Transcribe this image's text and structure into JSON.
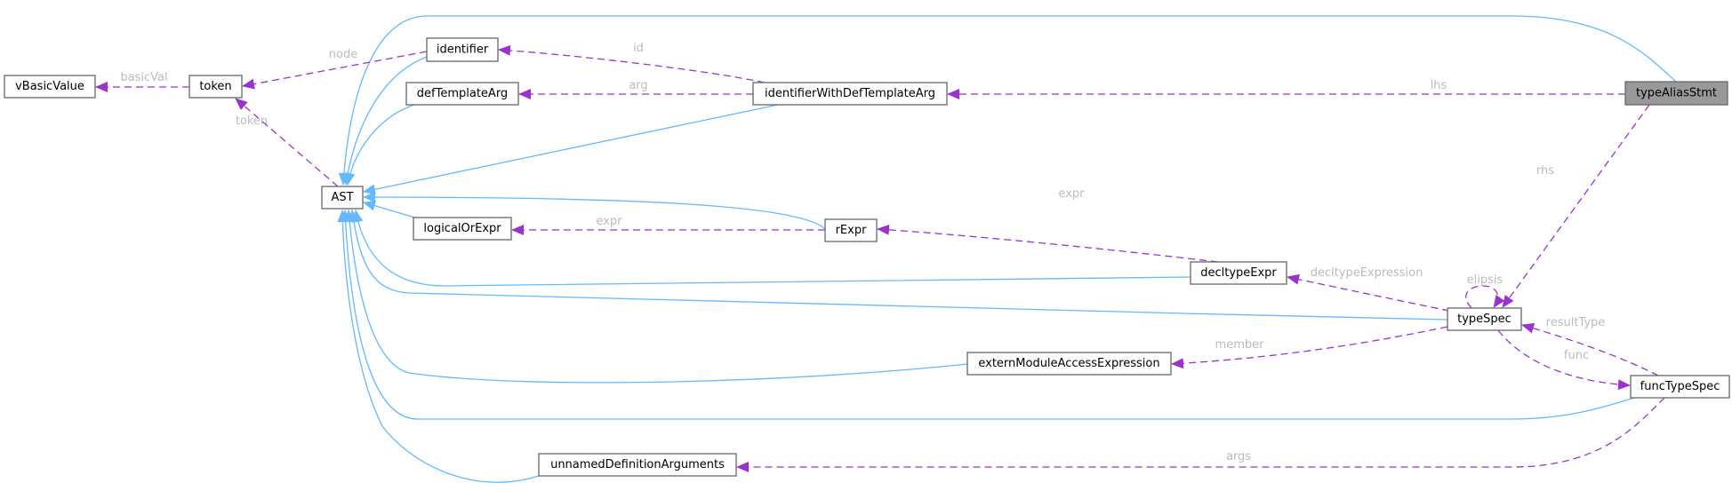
{
  "diagram": {
    "root": "typeAliasStmt",
    "colors": {
      "inheritance": "#63b8ff",
      "usage": "#9a32cd",
      "root_fill": "#999999",
      "edge_label": "#bbbbbb"
    },
    "nodes": [
      {
        "id": "typeAliasStmt",
        "label": "typeAliasStmt"
      },
      {
        "id": "identifierWithDefTemplateArg",
        "label": "identifierWithDefTemplateArg"
      },
      {
        "id": "identifier",
        "label": "identifier"
      },
      {
        "id": "defTemplateArg",
        "label": "defTemplateArg"
      },
      {
        "id": "token",
        "label": "token"
      },
      {
        "id": "vBasicValue",
        "label": "vBasicValue"
      },
      {
        "id": "AST",
        "label": "AST"
      },
      {
        "id": "logicalOrExpr",
        "label": "logicalOrExpr"
      },
      {
        "id": "rExpr",
        "label": "rExpr"
      },
      {
        "id": "decltypeExpr",
        "label": "decltypeExpr"
      },
      {
        "id": "typeSpec",
        "label": "typeSpec"
      },
      {
        "id": "externModuleAccessExpression",
        "label": "externModuleAccessExpression"
      },
      {
        "id": "funcTypeSpec",
        "label": "funcTypeSpec"
      },
      {
        "id": "unnamedDefinitionArguments",
        "label": "unnamedDefinitionArguments"
      }
    ],
    "inheritance_edges": [
      {
        "from": "typeAliasStmt",
        "to": "AST"
      },
      {
        "from": "identifier",
        "to": "AST"
      },
      {
        "from": "defTemplateArg",
        "to": "AST"
      },
      {
        "from": "identifierWithDefTemplateArg",
        "to": "AST"
      },
      {
        "from": "rExpr",
        "to": "AST"
      },
      {
        "from": "logicalOrExpr",
        "to": "AST"
      },
      {
        "from": "decltypeExpr",
        "to": "AST"
      },
      {
        "from": "typeSpec",
        "to": "AST"
      },
      {
        "from": "externModuleAccessExpression",
        "to": "AST"
      },
      {
        "from": "funcTypeSpec",
        "to": "AST"
      },
      {
        "from": "unnamedDefinitionArguments",
        "to": "AST"
      }
    ],
    "usage_edges": [
      {
        "from": "token",
        "to": "vBasicValue",
        "label": "basicVal"
      },
      {
        "from": "identifier",
        "to": "token",
        "label": "node"
      },
      {
        "from": "AST",
        "to": "token",
        "label": "token"
      },
      {
        "from": "identifierWithDefTemplateArg",
        "to": "identifier",
        "label": "id"
      },
      {
        "from": "identifierWithDefTemplateArg",
        "to": "defTemplateArg",
        "label": "arg"
      },
      {
        "from": "typeAliasStmt",
        "to": "identifierWithDefTemplateArg",
        "label": "lhs"
      },
      {
        "from": "typeAliasStmt",
        "to": "typeSpec",
        "label": "rhs"
      },
      {
        "from": "rExpr",
        "to": "logicalOrExpr",
        "label": "expr"
      },
      {
        "from": "decltypeExpr",
        "to": "rExpr",
        "label": "expr"
      },
      {
        "from": "typeSpec",
        "to": "decltypeExpr",
        "label": "decltypeExpression"
      },
      {
        "from": "typeSpec",
        "to": "typeSpec",
        "label": "elipsis"
      },
      {
        "from": "typeSpec",
        "to": "externModuleAccessExpression",
        "label": "member"
      },
      {
        "from": "typeSpec",
        "to": "funcTypeSpec",
        "label": "func"
      },
      {
        "from": "funcTypeSpec",
        "to": "typeSpec",
        "label": "resultType"
      },
      {
        "from": "funcTypeSpec",
        "to": "unnamedDefinitionArguments",
        "label": "args"
      }
    ]
  }
}
